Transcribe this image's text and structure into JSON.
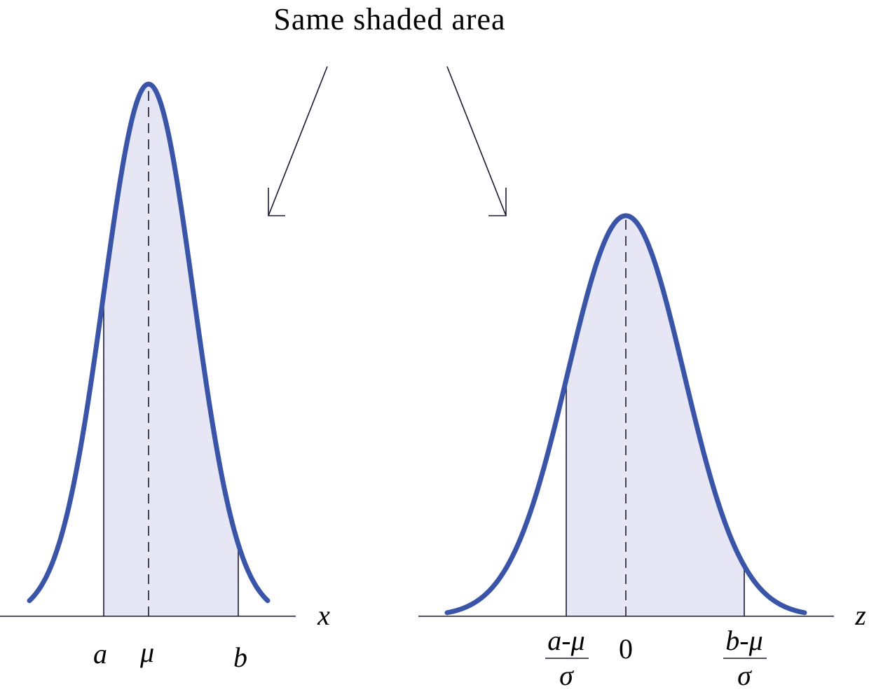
{
  "title": "Same shaded area",
  "left_panel": {
    "axis_label": "x",
    "tick_labels": [
      "a",
      "μ",
      "b"
    ]
  },
  "right_panel": {
    "axis_label": "z",
    "lower_bound": {
      "numerator": "a-μ",
      "denominator": "σ"
    },
    "center": "0",
    "upper_bound": {
      "numerator": "b-μ",
      "denominator": "σ"
    }
  }
}
